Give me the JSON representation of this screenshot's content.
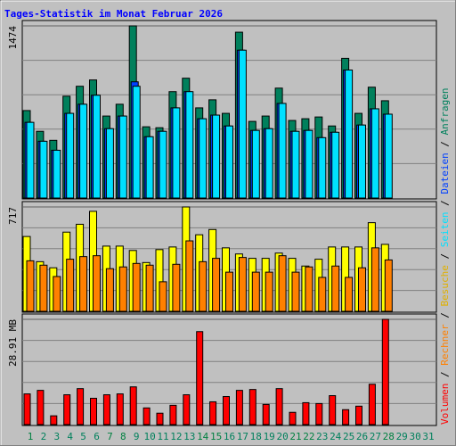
{
  "chart_data": {
    "type": "bar",
    "title": "Tages-Statistik im Monat Februar 2026",
    "categories": [
      "1",
      "2",
      "3",
      "4",
      "5",
      "6",
      "7",
      "8",
      "9",
      "10",
      "11",
      "12",
      "13",
      "14",
      "15",
      "16",
      "17",
      "18",
      "19",
      "20",
      "21",
      "22",
      "23",
      "24",
      "25",
      "26",
      "27",
      "28",
      "29",
      "30",
      "31"
    ],
    "category_colors": [
      "#008040",
      "#00805c",
      "#00805c",
      "#00805c",
      "#00805c",
      "#00805c",
      "#008040",
      "#008040",
      "#00805c",
      "#00805c",
      "#00805c",
      "#00805c",
      "#00805c",
      "#008040",
      "#008040",
      "#00805c",
      "#00805c",
      "#00805c",
      "#00805c",
      "#00805c",
      "#008040",
      "#008040",
      "#00805c",
      "#00805c",
      "#00805c",
      "#00805c",
      "#00805c",
      "#008040",
      "#00805c",
      "#00805c",
      "#00805c"
    ],
    "legend_separator": " / ",
    "panels": [
      {
        "ylim": [
          0,
          1474
        ],
        "yticks": [
          1474
        ],
        "grid": true,
        "series": [
          {
            "name": "Anfragen",
            "color": "#00805c",
            "values": [
              749,
              571,
              494,
              872,
              957,
              1011,
              702,
              803,
              1474,
              610,
              602,
              911,
              1026,
              772,
              841,
              725,
              1420,
              656,
              702,
              941,
              664,
              679,
              694,
              617,
              1196,
              725,
              949,
              833,
              null,
              null,
              null
            ]
          },
          {
            "name": "Dateien",
            "color": "#0040ff",
            "values": [
              648,
              486,
              409,
              725,
              803,
              880,
              594,
              702,
              995,
              525,
              571,
              772,
              911,
              679,
              710,
              617,
              1266,
              579,
              594,
              810,
              571,
              579,
              517,
              563,
              1096,
              625,
              764,
              718,
              null,
              null,
              null
            ]
          },
          {
            "name": "Seiten",
            "color": "#00e0ff",
            "values": [
              648,
              486,
              409,
              725,
              803,
              880,
              594,
              702,
              957,
              525,
              571,
              772,
              911,
              679,
              710,
              617,
              1266,
              579,
              594,
              810,
              571,
              579,
              517,
              563,
              1096,
              625,
              764,
              718,
              null,
              null,
              null
            ]
          }
        ]
      },
      {
        "ylim": [
          0,
          717
        ],
        "yticks": [
          717
        ],
        "grid": true,
        "series": [
          {
            "name": "Besuche",
            "color": "#ffff00",
            "text_color": "#e0b000",
            "values": [
              514,
              341,
              299,
              544,
              598,
              687,
              448,
              448,
              418,
              335,
              424,
              442,
              717,
              526,
              562,
              436,
              394,
              364,
              364,
              400,
              364,
              311,
              358,
              442,
              442,
              442,
              609,
              460,
              null,
              null,
              null
            ]
          },
          {
            "name": "Rechner",
            "color": "#ff8000",
            "values": [
              347,
              317,
              239,
              358,
              376,
              382,
              293,
              305,
              329,
              317,
              203,
              323,
              484,
              341,
              364,
              269,
              370,
              269,
              269,
              382,
              269,
              305,
              233,
              311,
              233,
              299,
              436,
              353,
              null,
              null,
              null
            ]
          }
        ]
      },
      {
        "ylim": [
          0,
          28.91
        ],
        "yticks": [
          {
            "value": 28.91,
            "label": "28.91 MB"
          }
        ],
        "grid": true,
        "series": [
          {
            "name": "Volumen",
            "color": "#ff0000",
            "values": [
              8.43,
              9.4,
              2.41,
              8.19,
              9.88,
              7.23,
              8.19,
              8.43,
              10.36,
              4.58,
              3.13,
              5.3,
              8.19,
              25.54,
              6.26,
              7.71,
              9.4,
              9.64,
              5.54,
              9.88,
              3.37,
              6.02,
              5.78,
              7.95,
              4.1,
              5.06,
              11.08,
              28.91,
              null,
              null,
              null
            ]
          }
        ]
      }
    ]
  }
}
